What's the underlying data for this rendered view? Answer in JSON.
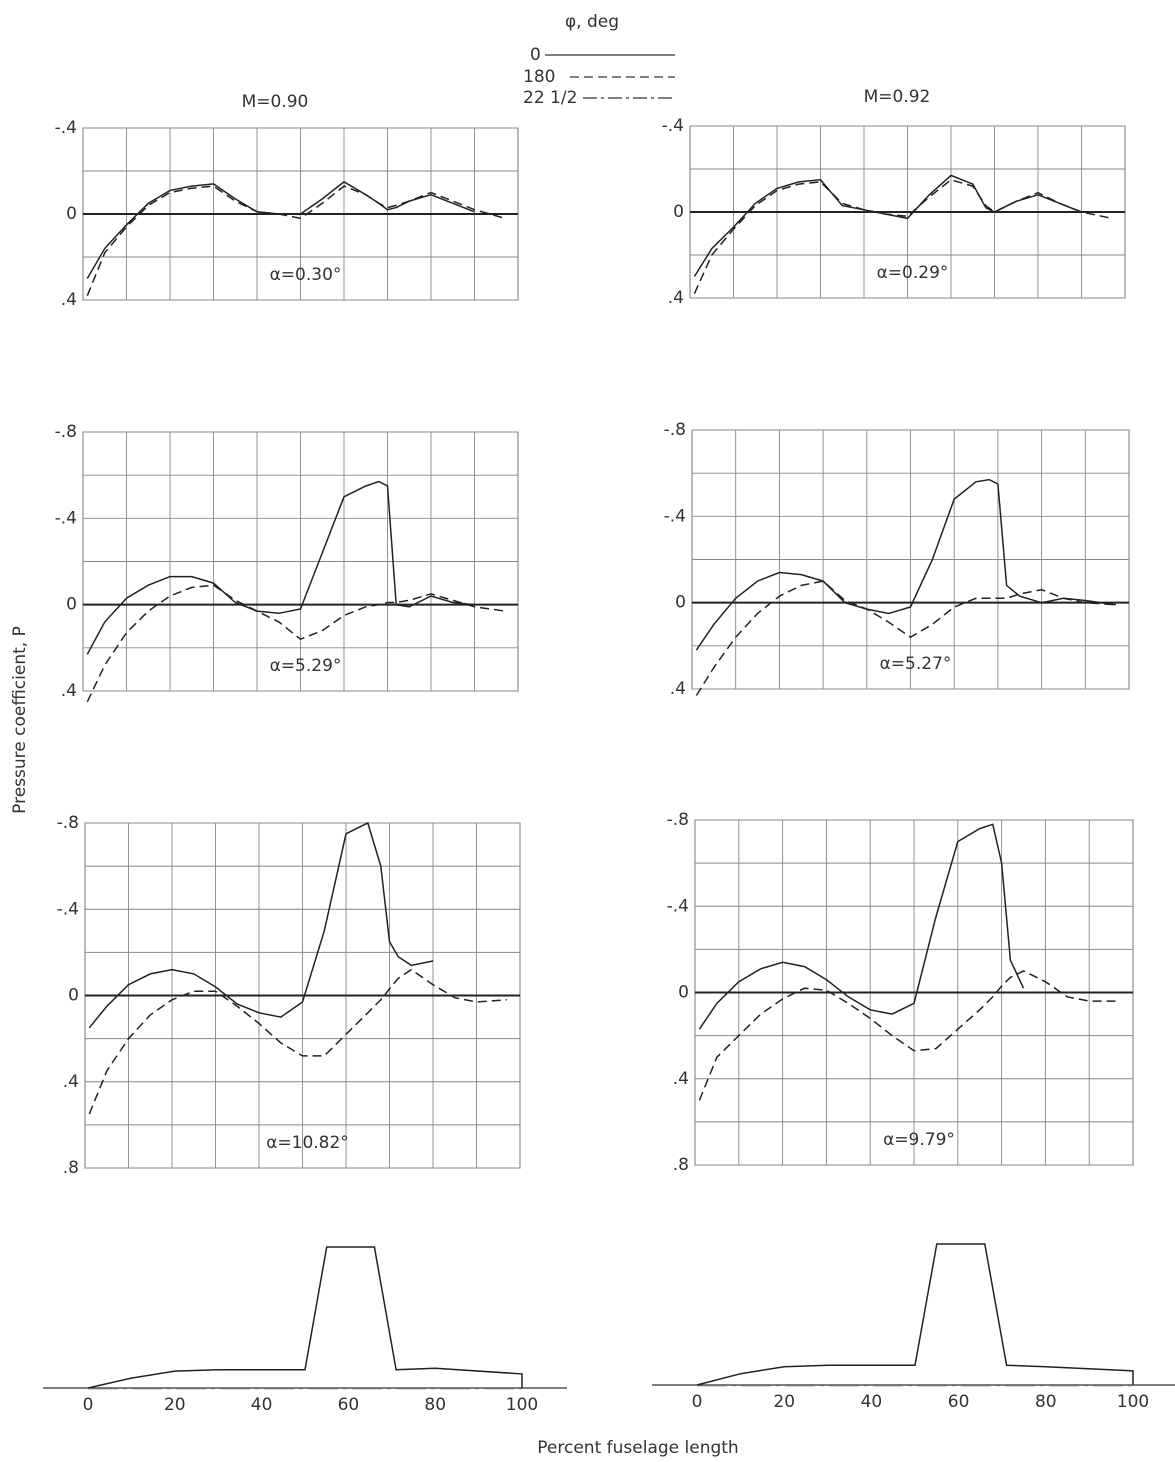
{
  "legend": {
    "title": "φ, deg",
    "entries": [
      {
        "name": "0",
        "dash": "solid"
      },
      {
        "name": "180",
        "dash": "dashed"
      },
      {
        "name": "22 1/2",
        "dash": "dashdot"
      }
    ]
  },
  "columns": [
    "M=0.90",
    "M=0.92"
  ],
  "y_label": "Pressure coefficient, P",
  "x_label": "Percent fuselage length",
  "chart_data": [
    {
      "type": "line",
      "annotation": "α=0.30°",
      "xlim": [
        0,
        100
      ],
      "ylim": [
        0.4,
        -0.4
      ],
      "yticks": [
        {
          "value": -0.4,
          "label": "-.4"
        },
        0,
        {
          "value": 0.4,
          "label": ".4"
        }
      ],
      "x": [
        1,
        5,
        10,
        15,
        20,
        25,
        30,
        35,
        40,
        45,
        50,
        55,
        60,
        65,
        68,
        70,
        72,
        75,
        80,
        85,
        90,
        97
      ],
      "series": [
        {
          "dash": "solid",
          "values": [
            0.3,
            0.16,
            0.05,
            -0.05,
            -0.11,
            -0.13,
            -0.14,
            -0.07,
            -0.01,
            0,
            0,
            -0.07,
            -0.15,
            -0.09,
            -0.05,
            -0.02,
            -0.03,
            -0.06,
            -0.09,
            -0.05,
            -0.01,
            null
          ]
        },
        {
          "dash": "dashed",
          "values": [
            0.38,
            0.18,
            0.06,
            -0.04,
            -0.1,
            -0.12,
            -0.13,
            -0.06,
            -0.01,
            0,
            0.02,
            -0.05,
            -0.13,
            -0.09,
            -0.05,
            -0.03,
            -0.04,
            -0.06,
            -0.1,
            -0.06,
            -0.02,
            0.02
          ]
        }
      ]
    },
    {
      "type": "line",
      "annotation": "α=0.29°",
      "xlim": [
        0,
        100
      ],
      "ylim": [
        0.4,
        -0.4
      ],
      "yticks": [
        {
          "value": -0.4,
          "label": "-.4"
        },
        0,
        {
          "value": 0.4,
          "label": ".4"
        }
      ],
      "x": [
        1,
        5,
        10,
        15,
        20,
        25,
        30,
        35,
        40,
        45,
        50,
        55,
        60,
        65,
        68,
        70,
        72,
        75,
        80,
        85,
        90,
        97
      ],
      "series": [
        {
          "dash": "solid",
          "values": [
            0.3,
            0.17,
            0.07,
            -0.04,
            -0.11,
            -0.14,
            -0.15,
            -0.03,
            -0.01,
            0.01,
            0.03,
            -0.08,
            -0.17,
            -0.13,
            -0.02,
            0,
            -0.02,
            -0.05,
            -0.08,
            -0.04,
            0,
            null
          ]
        },
        {
          "dash": "dashed",
          "values": [
            0.38,
            0.2,
            0.08,
            -0.03,
            -0.1,
            -0.13,
            -0.14,
            -0.04,
            -0.01,
            0.01,
            0.02,
            -0.07,
            -0.15,
            -0.12,
            -0.03,
            0,
            -0.02,
            -0.05,
            -0.09,
            -0.04,
            0,
            0.03
          ]
        }
      ]
    },
    {
      "type": "line",
      "annotation": "α=5.29°",
      "xlim": [
        0,
        100
      ],
      "ylim": [
        0.4,
        -0.8
      ],
      "yticks": [
        {
          "value": -0.8,
          "label": "-.8"
        },
        {
          "value": -0.4,
          "label": "-.4"
        },
        0,
        {
          "value": 0.4,
          "label": ".4"
        }
      ],
      "x": [
        1,
        5,
        10,
        15,
        20,
        25,
        30,
        35,
        40,
        45,
        50,
        55,
        60,
        65,
        68,
        70,
        72,
        75,
        80,
        85,
        90,
        97
      ],
      "series": [
        {
          "dash": "solid",
          "values": [
            0.23,
            0.08,
            -0.03,
            -0.09,
            -0.13,
            -0.13,
            -0.1,
            -0.01,
            0.03,
            0.04,
            0.02,
            -0.24,
            -0.5,
            -0.55,
            -0.57,
            -0.55,
            0,
            0.01,
            -0.04,
            -0.01,
            0,
            null
          ]
        },
        {
          "dash": "dashed",
          "values": [
            0.45,
            0.28,
            0.13,
            0.03,
            -0.04,
            -0.08,
            -0.09,
            -0.02,
            0.03,
            0.08,
            0.16,
            0.12,
            0.05,
            0.01,
            0,
            -0.01,
            -0.01,
            -0.02,
            -0.05,
            -0.02,
            0.01,
            0.03
          ]
        }
      ]
    },
    {
      "type": "line",
      "annotation": "α=5.27°",
      "xlim": [
        0,
        100
      ],
      "ylim": [
        0.4,
        -0.8
      ],
      "yticks": [
        {
          "value": -0.8,
          "label": "-.8"
        },
        {
          "value": -0.4,
          "label": "-.4"
        },
        0,
        {
          "value": 0.4,
          "label": ".4"
        }
      ],
      "x": [
        1,
        5,
        10,
        15,
        20,
        25,
        30,
        35,
        40,
        45,
        50,
        55,
        60,
        65,
        68,
        70,
        72,
        75,
        80,
        85,
        90,
        97
      ],
      "series": [
        {
          "dash": "solid",
          "values": [
            0.22,
            0.1,
            -0.02,
            -0.1,
            -0.14,
            -0.13,
            -0.1,
            0,
            0.03,
            0.05,
            0.02,
            -0.2,
            -0.48,
            -0.56,
            -0.57,
            -0.55,
            -0.08,
            -0.03,
            0,
            -0.02,
            -0.01,
            0.01
          ]
        },
        {
          "dash": "dashed",
          "values": [
            0.43,
            0.3,
            0.16,
            0.05,
            -0.03,
            -0.08,
            -0.1,
            -0.01,
            0.03,
            0.09,
            0.16,
            0.1,
            0.02,
            -0.02,
            -0.02,
            -0.02,
            -0.02,
            -0.04,
            -0.06,
            -0.02,
            0,
            0.01
          ]
        }
      ]
    },
    {
      "type": "line",
      "annotation": "α=10.82°",
      "xlim": [
        0,
        100
      ],
      "ylim": [
        0.8,
        -0.8
      ],
      "yticks": [
        {
          "value": -0.8,
          "label": "-.8"
        },
        {
          "value": -0.4,
          "label": "-.4"
        },
        0,
        {
          "value": 0.4,
          "label": ".4"
        },
        {
          "value": 0.8,
          "label": ".8"
        }
      ],
      "x": [
        1,
        5,
        10,
        15,
        20,
        25,
        30,
        35,
        40,
        45,
        50,
        55,
        60,
        65,
        68,
        70,
        72,
        75,
        80,
        85,
        90,
        97
      ],
      "series": [
        {
          "dash": "solid",
          "values": [
            0.15,
            0.05,
            -0.05,
            -0.1,
            -0.12,
            -0.1,
            -0.04,
            0.04,
            0.08,
            0.1,
            0.03,
            -0.3,
            -0.75,
            -0.8,
            -0.6,
            -0.25,
            -0.18,
            -0.14,
            -0.16,
            null,
            null,
            null
          ]
        },
        {
          "dash": "dashed",
          "values": [
            0.55,
            0.35,
            0.2,
            0.09,
            0.02,
            -0.02,
            -0.02,
            0.05,
            0.13,
            0.22,
            0.28,
            0.28,
            0.18,
            0.08,
            0.02,
            -0.03,
            -0.08,
            -0.12,
            -0.05,
            0.01,
            0.03,
            0.02
          ]
        }
      ]
    },
    {
      "type": "line",
      "annotation": "α=9.79°",
      "xlim": [
        0,
        100
      ],
      "ylim": [
        0.8,
        -0.8
      ],
      "yticks": [
        {
          "value": -0.8,
          "label": "-.8"
        },
        {
          "value": -0.4,
          "label": "-.4"
        },
        0,
        {
          "value": 0.4,
          "label": ".4"
        },
        {
          "value": 0.8,
          "label": ".8"
        }
      ],
      "x": [
        1,
        5,
        10,
        15,
        20,
        25,
        30,
        35,
        40,
        45,
        50,
        55,
        60,
        65,
        68,
        70,
        72,
        75,
        80,
        85,
        90,
        97
      ],
      "series": [
        {
          "dash": "solid",
          "values": [
            0.17,
            0.05,
            -0.05,
            -0.11,
            -0.14,
            -0.12,
            -0.06,
            0.02,
            0.08,
            0.1,
            0.05,
            -0.35,
            -0.7,
            -0.76,
            -0.78,
            -0.6,
            -0.15,
            -0.02,
            null,
            null,
            null,
            null
          ]
        },
        {
          "dash": "dashed",
          "values": [
            0.5,
            0.3,
            0.2,
            0.1,
            0.03,
            -0.02,
            -0.01,
            0.05,
            0.12,
            0.2,
            0.27,
            0.26,
            0.17,
            0.08,
            0.02,
            -0.03,
            -0.07,
            -0.1,
            -0.05,
            0.02,
            0.04,
            0.04
          ]
        }
      ]
    },
    {
      "type": "body",
      "x": [
        0,
        10,
        20,
        30,
        50,
        55,
        66,
        71,
        80,
        100
      ],
      "values": [
        0,
        0.07,
        0.12,
        0.13,
        0.13,
        1,
        1,
        0.13,
        0.14,
        0.1
      ],
      "xticks": [
        0,
        20,
        40,
        60,
        80,
        100
      ]
    },
    {
      "type": "body",
      "x": [
        0,
        10,
        20,
        30,
        50,
        55,
        66,
        71,
        80,
        100
      ],
      "values": [
        0,
        0.08,
        0.13,
        0.14,
        0.14,
        1,
        1,
        0.14,
        0.13,
        0.1
      ],
      "xticks": [
        0,
        20,
        40,
        60,
        80,
        100
      ]
    }
  ]
}
